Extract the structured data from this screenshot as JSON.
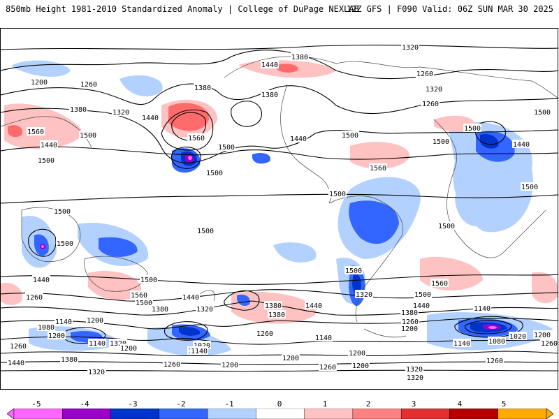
{
  "header": {
    "title_left": "850mb Height 1981-2010 Standardized Anomaly | College of DuPage NEXLAB",
    "title_right": "12Z GFS | F090 Valid: 06Z SUN MAR 30 2025"
  },
  "colorbar": {
    "ticks": [
      "-5",
      "-4",
      "-3",
      "-2",
      "-1",
      "0",
      "1",
      "2",
      "3",
      "4",
      "5"
    ],
    "colors": [
      "#ff66ff",
      "#9900cc",
      "#0033cc",
      "#3366ff",
      "#b3d1ff",
      "#ffffff",
      "#ffc2c2",
      "#ff8080",
      "#e03030",
      "#b30000",
      "#ffaa00"
    ]
  },
  "contour_labels": [
    "1320",
    "1380",
    "1440",
    "1380",
    "1260",
    "1200",
    "1260",
    "1380",
    "1320",
    "1440",
    "1560",
    "1500",
    "1380",
    "1320",
    "1500",
    "1560",
    "1440",
    "1500",
    "1500",
    "1260",
    "1440",
    "1500",
    "1500",
    "1440",
    "1500",
    "1500",
    "1500",
    "1500",
    "1560",
    "1500",
    "1500",
    "1500",
    "1500",
    "1500",
    "1500",
    "1440",
    "1260",
    "1320",
    "1560",
    "1500",
    "1440",
    "1380",
    "1320",
    "1440",
    "1380",
    "1260",
    "1200",
    "1500",
    "1560",
    "1440",
    "1380",
    "1260",
    "1200",
    "1140",
    "1080",
    "1200",
    "1140",
    "1320",
    "1020",
    "1140",
    "1260",
    "1200",
    "1140",
    "1200",
    "1260",
    "1200",
    "1320",
    "1320",
    "1140",
    "1080",
    "1020",
    "1200",
    "1260",
    "1140",
    "1260",
    "1320",
    "1440",
    "1380",
    "1260",
    "1200",
    "1140",
    "1380",
    "1320",
    "1200"
  ]
}
